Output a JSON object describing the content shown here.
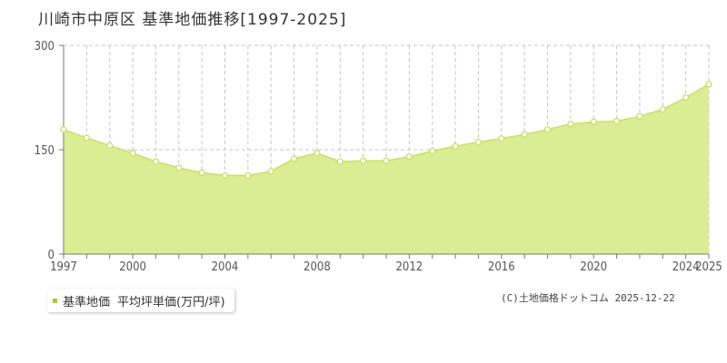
{
  "header": {
    "title": "川崎市中原区 基準地価推移[1997-2025]"
  },
  "legend": {
    "series_label": "基準地価",
    "unit_label": "平均坪単価(万円/坪)"
  },
  "footer": {
    "copyright": "(C)土地価格ドットコム 2025-12-22"
  },
  "colors": {
    "fill": "#dcec94",
    "line": "#c8df62",
    "legend_marker": "#a8cc30",
    "guide": "#c6c6c6",
    "axis": "#777777"
  },
  "chart_data": {
    "type": "area",
    "title": "川崎市中原区 基準地価推移[1997-2025]",
    "xlabel": "",
    "ylabel": "",
    "xlim": [
      1997,
      2025
    ],
    "ylim": [
      0,
      300
    ],
    "yticks": [
      0,
      150,
      300
    ],
    "xtick_labels": [
      "1997",
      "2000",
      "2004",
      "2008",
      "2012",
      "2016",
      "2020",
      "2024",
      "2025"
    ],
    "grid": true,
    "legend_position": "bottom-left",
    "series": [
      {
        "name": "基準地価 平均坪単価(万円/坪)",
        "x": [
          1997,
          1998,
          1999,
          2000,
          2001,
          2002,
          2003,
          2004,
          2005,
          2006,
          2007,
          2008,
          2009,
          2010,
          2011,
          2012,
          2013,
          2014,
          2015,
          2016,
          2017,
          2018,
          2019,
          2020,
          2021,
          2022,
          2023,
          2024,
          2025
        ],
        "y": [
          179,
          167,
          156,
          145,
          133,
          124,
          117,
          113,
          113,
          119,
          137,
          145,
          133,
          134,
          134,
          140,
          148,
          155,
          161,
          166,
          172,
          179,
          187,
          190,
          191,
          198,
          208,
          225,
          244
        ]
      }
    ]
  }
}
